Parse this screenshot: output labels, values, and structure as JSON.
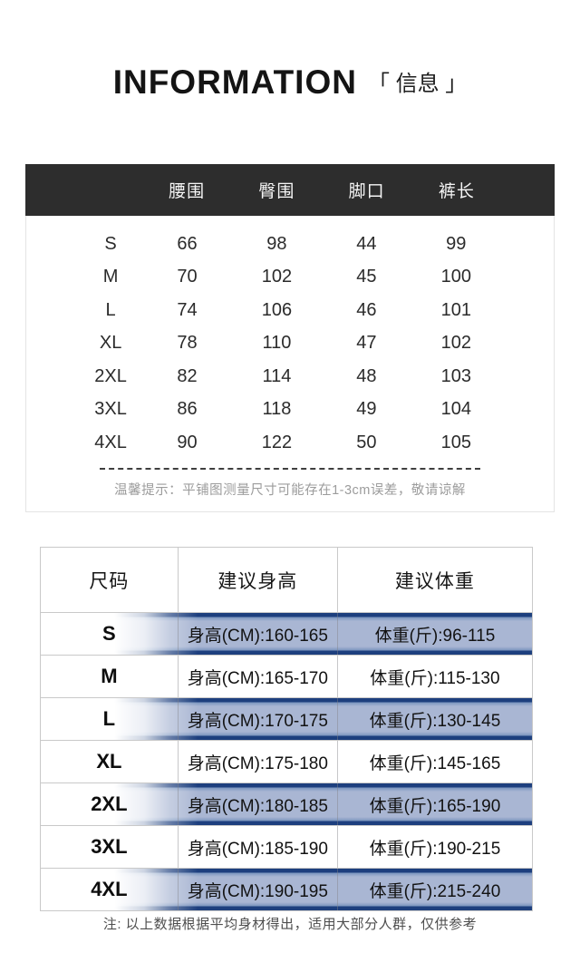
{
  "page": {
    "title": "INFORMATION",
    "subtitle": "「 信息 」"
  },
  "size_table": {
    "headers": [
      "",
      "腰围",
      "臀围",
      "脚口",
      "裤长"
    ],
    "rows": [
      {
        "size": "S",
        "waist": "66",
        "hip": "98",
        "leg_opening": "44",
        "length": "99"
      },
      {
        "size": "M",
        "waist": "70",
        "hip": "102",
        "leg_opening": "45",
        "length": "100"
      },
      {
        "size": "L",
        "waist": "74",
        "hip": "106",
        "leg_opening": "46",
        "length": "101"
      },
      {
        "size": "XL",
        "waist": "78",
        "hip": "110",
        "leg_opening": "47",
        "length": "102"
      },
      {
        "size": "2XL",
        "waist": "82",
        "hip": "114",
        "leg_opening": "48",
        "length": "103"
      },
      {
        "size": "3XL",
        "waist": "86",
        "hip": "118",
        "leg_opening": "49",
        "length": "104"
      },
      {
        "size": "4XL",
        "waist": "90",
        "hip": "122",
        "leg_opening": "50",
        "length": "105"
      }
    ],
    "note": "温馨提示：平铺图测量尺寸可能存在1-3cm误差，敬请谅解"
  },
  "recommendation_table": {
    "headers": [
      "尺码",
      "建议身高",
      "建议体重"
    ],
    "rows": [
      {
        "size": "S",
        "height": "身高(CM):160-165",
        "weight": "体重(斤):96-115",
        "highlighted": true
      },
      {
        "size": "M",
        "height": "身高(CM):165-170",
        "weight": "体重(斤):115-130",
        "highlighted": false
      },
      {
        "size": "L",
        "height": "身高(CM):170-175",
        "weight": "体重(斤):130-145",
        "highlighted": true
      },
      {
        "size": "XL",
        "height": "身高(CM):175-180",
        "weight": "体重(斤):145-165",
        "highlighted": false
      },
      {
        "size": "2XL",
        "height": "身高(CM):180-185",
        "weight": "体重(斤):165-190",
        "highlighted": true
      },
      {
        "size": "3XL",
        "height": "身高(CM):185-190",
        "weight": "体重(斤):190-215",
        "highlighted": false
      },
      {
        "size": "4XL",
        "height": "身高(CM):190-195",
        "weight": "体重(斤):215-240",
        "highlighted": true
      }
    ],
    "note": "注: 以上数据根据平均身材得出，适用大部分人群，仅供参考"
  },
  "colors": {
    "header_bar": "#2d2d2d",
    "highlight_fill": "#a9b6d3",
    "highlight_stripe": "#1d3f7e",
    "table_border": "#c9c9c9",
    "note_gray": "#9c9c9c"
  }
}
